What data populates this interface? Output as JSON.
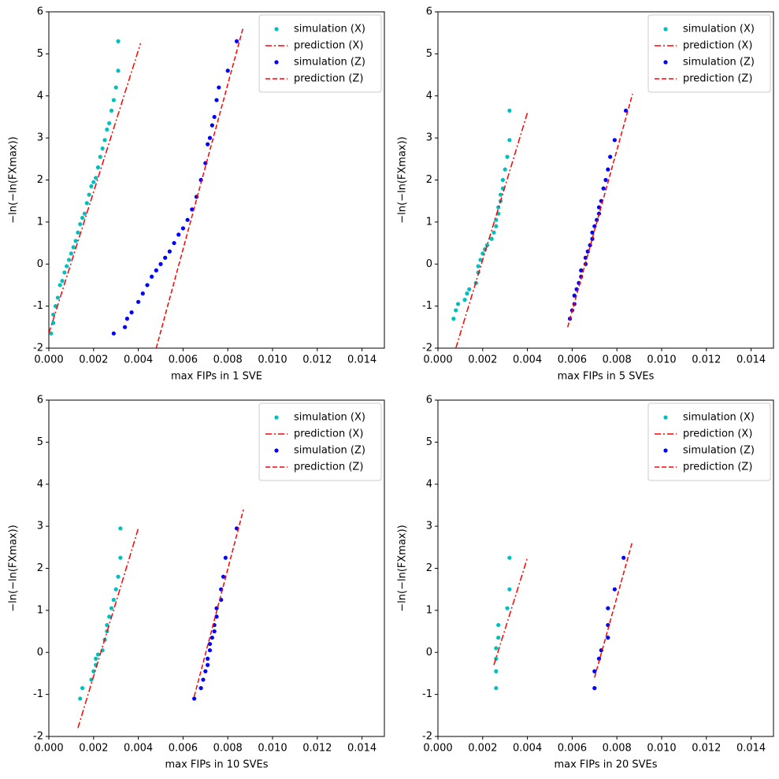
{
  "chart_data": [
    {
      "type": "scatter",
      "xlabel": "max FIPs in 1 SVE",
      "ylabel": "−ln(−ln(FXmax))",
      "legend": "upper right",
      "xlim": [
        0,
        0.015
      ],
      "ylim": [
        -2,
        6
      ],
      "xticks": [
        {
          "value": 0,
          "label": "0.000"
        },
        {
          "value": 0.002,
          "label": "0.002"
        },
        {
          "value": 0.004,
          "label": "0.004"
        },
        {
          "value": 0.006,
          "label": "0.006"
        },
        {
          "value": 0.008,
          "label": "0.008"
        },
        {
          "value": 0.01,
          "label": "0.010"
        },
        {
          "value": 0.012,
          "label": "0.012"
        },
        {
          "value": 0.014,
          "label": "0.014"
        }
      ],
      "yticks": [
        -2,
        -1,
        0,
        1,
        2,
        3,
        4,
        5,
        6
      ],
      "series": [
        {
          "name": "simulation (X)",
          "color": "#00bfbf",
          "style": "dot",
          "x": [
            0.0001,
            0.0002,
            0.0002,
            0.0003,
            0.0004,
            0.0005,
            0.0006,
            0.0007,
            0.0008,
            0.0009,
            0.001,
            0.0011,
            0.0012,
            0.0013,
            0.0014,
            0.0015,
            0.0016,
            0.0017,
            0.0018,
            0.0019,
            0.002,
            0.0021,
            0.0022,
            0.0023,
            0.0024,
            0.0025,
            0.0026,
            0.0027,
            0.0028,
            0.0029,
            0.003,
            0.0031,
            0.0031
          ],
          "values": [
            -1.65,
            -1.4,
            -1.2,
            -1.0,
            -0.8,
            -0.5,
            -0.4,
            -0.2,
            -0.05,
            0.1,
            0.25,
            0.4,
            0.55,
            0.75,
            0.95,
            1.1,
            1.2,
            1.45,
            1.65,
            1.85,
            1.95,
            2.05,
            2.3,
            2.55,
            2.75,
            2.95,
            3.2,
            3.35,
            3.65,
            3.9,
            4.2,
            4.6,
            5.3
          ]
        },
        {
          "name": "prediction (X)",
          "color": "#ff0000",
          "style": "dashdot",
          "x": [
            0,
            0.0041
          ],
          "values": [
            -1.65,
            5.25
          ]
        },
        {
          "name": "simulation (Z)",
          "color": "#0000ff",
          "style": "dot",
          "x": [
            0.0029,
            0.0034,
            0.0035,
            0.0037,
            0.004,
            0.0042,
            0.0044,
            0.0046,
            0.0048,
            0.005,
            0.0052,
            0.0054,
            0.0056,
            0.0058,
            0.006,
            0.0062,
            0.0064,
            0.0066,
            0.0068,
            0.007,
            0.0071,
            0.0072,
            0.0073,
            0.0074,
            0.0075,
            0.0076,
            0.008,
            0.0084
          ],
          "values": [
            -1.65,
            -1.5,
            -1.3,
            -1.15,
            -0.9,
            -0.7,
            -0.5,
            -0.3,
            -0.15,
            0.0,
            0.15,
            0.3,
            0.5,
            0.7,
            0.85,
            1.05,
            1.3,
            1.6,
            2.0,
            2.4,
            2.85,
            3.0,
            3.3,
            3.5,
            3.9,
            4.2,
            4.6,
            5.3
          ]
        },
        {
          "name": "prediction (Z)",
          "color": "#ff0000",
          "style": "dashed",
          "x": [
            0.0048,
            0.0087
          ],
          "values": [
            -2,
            5.65
          ]
        }
      ]
    },
    {
      "type": "scatter",
      "xlabel": "max FIPs in 5 SVEs",
      "ylabel": "−ln(−ln(FXmax))",
      "legend": "upper right",
      "xlim": [
        0,
        0.015
      ],
      "ylim": [
        -2,
        6
      ],
      "xticks": [
        {
          "value": 0,
          "label": "0.000"
        },
        {
          "value": 0.002,
          "label": "0.002"
        },
        {
          "value": 0.004,
          "label": "0.004"
        },
        {
          "value": 0.006,
          "label": "0.006"
        },
        {
          "value": 0.008,
          "label": "0.008"
        },
        {
          "value": 0.01,
          "label": "0.010"
        },
        {
          "value": 0.012,
          "label": "0.012"
        },
        {
          "value": 0.014,
          "label": "0.014"
        }
      ],
      "yticks": [
        -2,
        -1,
        0,
        1,
        2,
        3,
        4,
        5,
        6
      ],
      "series": [
        {
          "name": "simulation (X)",
          "color": "#00bfbf",
          "style": "dot",
          "x": [
            0.0007,
            0.0008,
            0.0009,
            0.0012,
            0.0013,
            0.0014,
            0.0017,
            0.0018,
            0.0018,
            0.0019,
            0.002,
            0.0021,
            0.0022,
            0.0024,
            0.0025,
            0.0026,
            0.0026,
            0.0027,
            0.0027,
            0.0028,
            0.0028,
            0.0029,
            0.0029,
            0.003,
            0.0031,
            0.0032,
            0.0032
          ],
          "values": [
            -1.3,
            -1.1,
            -0.95,
            -0.85,
            -0.7,
            -0.6,
            -0.45,
            -0.2,
            -0.05,
            0.1,
            0.25,
            0.35,
            0.45,
            0.6,
            0.75,
            0.9,
            1.05,
            1.2,
            1.35,
            1.5,
            1.65,
            1.8,
            2.0,
            2.25,
            2.55,
            2.95,
            3.65
          ]
        },
        {
          "name": "prediction (X)",
          "color": "#ff0000",
          "style": "dashdot",
          "x": [
            0.0008,
            0.004
          ],
          "values": [
            -2,
            3.6
          ]
        },
        {
          "name": "simulation (Z)",
          "color": "#0000ff",
          "style": "dot",
          "x": [
            0.0059,
            0.006,
            0.0061,
            0.0061,
            0.0062,
            0.0063,
            0.0064,
            0.0064,
            0.0066,
            0.0066,
            0.0067,
            0.0068,
            0.0069,
            0.0069,
            0.007,
            0.0071,
            0.0072,
            0.0072,
            0.0073,
            0.0074,
            0.0075,
            0.0076,
            0.0077,
            0.0079,
            0.0084
          ],
          "values": [
            -1.3,
            -1.1,
            -0.95,
            -0.75,
            -0.6,
            -0.45,
            -0.3,
            -0.15,
            0.0,
            0.15,
            0.3,
            0.45,
            0.6,
            0.75,
            0.9,
            1.05,
            1.2,
            1.35,
            1.5,
            1.8,
            2.0,
            2.25,
            2.55,
            2.95,
            3.65
          ]
        },
        {
          "name": "prediction (Z)",
          "color": "#ff0000",
          "style": "dashed",
          "x": [
            0.0058,
            0.0087
          ],
          "values": [
            -1.5,
            4.05
          ]
        }
      ]
    },
    {
      "type": "scatter",
      "xlabel": "max FIPs in 10 SVEs",
      "ylabel": "−ln(−ln(FXmax))",
      "legend": "upper right",
      "xlim": [
        0,
        0.015
      ],
      "ylim": [
        -2,
        6
      ],
      "xticks": [
        {
          "value": 0,
          "label": "0.000"
        },
        {
          "value": 0.002,
          "label": "0.002"
        },
        {
          "value": 0.004,
          "label": "0.004"
        },
        {
          "value": 0.006,
          "label": "0.006"
        },
        {
          "value": 0.008,
          "label": "0.008"
        },
        {
          "value": 0.01,
          "label": "0.010"
        },
        {
          "value": 0.012,
          "label": "0.012"
        },
        {
          "value": 0.014,
          "label": "0.014"
        }
      ],
      "yticks": [
        -2,
        -1,
        0,
        1,
        2,
        3,
        4,
        5,
        6
      ],
      "series": [
        {
          "name": "simulation (X)",
          "color": "#00bfbf",
          "style": "dot",
          "x": [
            0.0014,
            0.0015,
            0.0019,
            0.002,
            0.0021,
            0.0021,
            0.0022,
            0.0024,
            0.0025,
            0.0026,
            0.0026,
            0.0027,
            0.0028,
            0.0029,
            0.003,
            0.0031,
            0.0032,
            0.0032
          ],
          "values": [
            -1.1,
            -0.85,
            -0.65,
            -0.45,
            -0.3,
            -0.15,
            -0.05,
            0.05,
            0.3,
            0.5,
            0.65,
            0.85,
            1.05,
            1.25,
            1.5,
            1.8,
            2.25,
            2.95
          ]
        },
        {
          "name": "prediction (X)",
          "color": "#ff0000",
          "style": "dashdot",
          "x": [
            0.0013,
            0.004
          ],
          "values": [
            -1.8,
            2.95
          ]
        },
        {
          "name": "simulation (Z)",
          "color": "#0000ff",
          "style": "dot",
          "x": [
            0.0065,
            0.0068,
            0.0069,
            0.007,
            0.0071,
            0.0071,
            0.0072,
            0.0072,
            0.0073,
            0.0074,
            0.0074,
            0.0075,
            0.0075,
            0.0077,
            0.0077,
            0.0078,
            0.0079,
            0.0084
          ],
          "values": [
            -1.1,
            -0.85,
            -0.65,
            -0.45,
            -0.3,
            -0.15,
            0.05,
            0.2,
            0.35,
            0.5,
            0.65,
            0.85,
            1.05,
            1.25,
            1.5,
            1.8,
            2.25,
            2.95
          ]
        },
        {
          "name": "prediction (Z)",
          "color": "#ff0000",
          "style": "dashed",
          "x": [
            0.0065,
            0.0087
          ],
          "values": [
            -1.05,
            3.4
          ]
        }
      ]
    },
    {
      "type": "scatter",
      "xlabel": "max FIPs in 20 SVEs",
      "ylabel": "−ln(−ln(FXmax))",
      "legend": "upper right",
      "xlim": [
        0,
        0.015
      ],
      "ylim": [
        -2,
        6
      ],
      "xticks": [
        {
          "value": 0,
          "label": "0.000"
        },
        {
          "value": 0.002,
          "label": "0.002"
        },
        {
          "value": 0.004,
          "label": "0.004"
        },
        {
          "value": 0.006,
          "label": "0.006"
        },
        {
          "value": 0.008,
          "label": "0.008"
        },
        {
          "value": 0.01,
          "label": "0.010"
        },
        {
          "value": 0.012,
          "label": "0.012"
        },
        {
          "value": 0.014,
          "label": "0.014"
        }
      ],
      "yticks": [
        -2,
        -1,
        0,
        1,
        2,
        3,
        4,
        5,
        6
      ],
      "series": [
        {
          "name": "simulation (X)",
          "color": "#00bfbf",
          "style": "dot",
          "x": [
            0.0026,
            0.0026,
            0.0026,
            0.0026,
            0.0027,
            0.0027,
            0.0031,
            0.0032,
            0.0032
          ],
          "values": [
            -0.85,
            -0.45,
            -0.15,
            0.1,
            0.35,
            0.65,
            1.05,
            1.5,
            2.25
          ]
        },
        {
          "name": "prediction (X)",
          "color": "#ff0000",
          "style": "dashdot",
          "x": [
            0.0025,
            0.004
          ],
          "values": [
            -0.3,
            2.25
          ]
        },
        {
          "name": "simulation (Z)",
          "color": "#0000ff",
          "style": "dot",
          "x": [
            0.007,
            0.007,
            0.0072,
            0.0073,
            0.0076,
            0.0076,
            0.0076,
            0.0079,
            0.0083
          ],
          "values": [
            -0.85,
            -0.45,
            -0.15,
            0.05,
            0.35,
            0.65,
            1.05,
            1.5,
            2.25
          ]
        },
        {
          "name": "prediction (Z)",
          "color": "#ff0000",
          "style": "dashed",
          "x": [
            0.007,
            0.0087
          ],
          "values": [
            -0.6,
            2.65
          ]
        }
      ]
    }
  ]
}
